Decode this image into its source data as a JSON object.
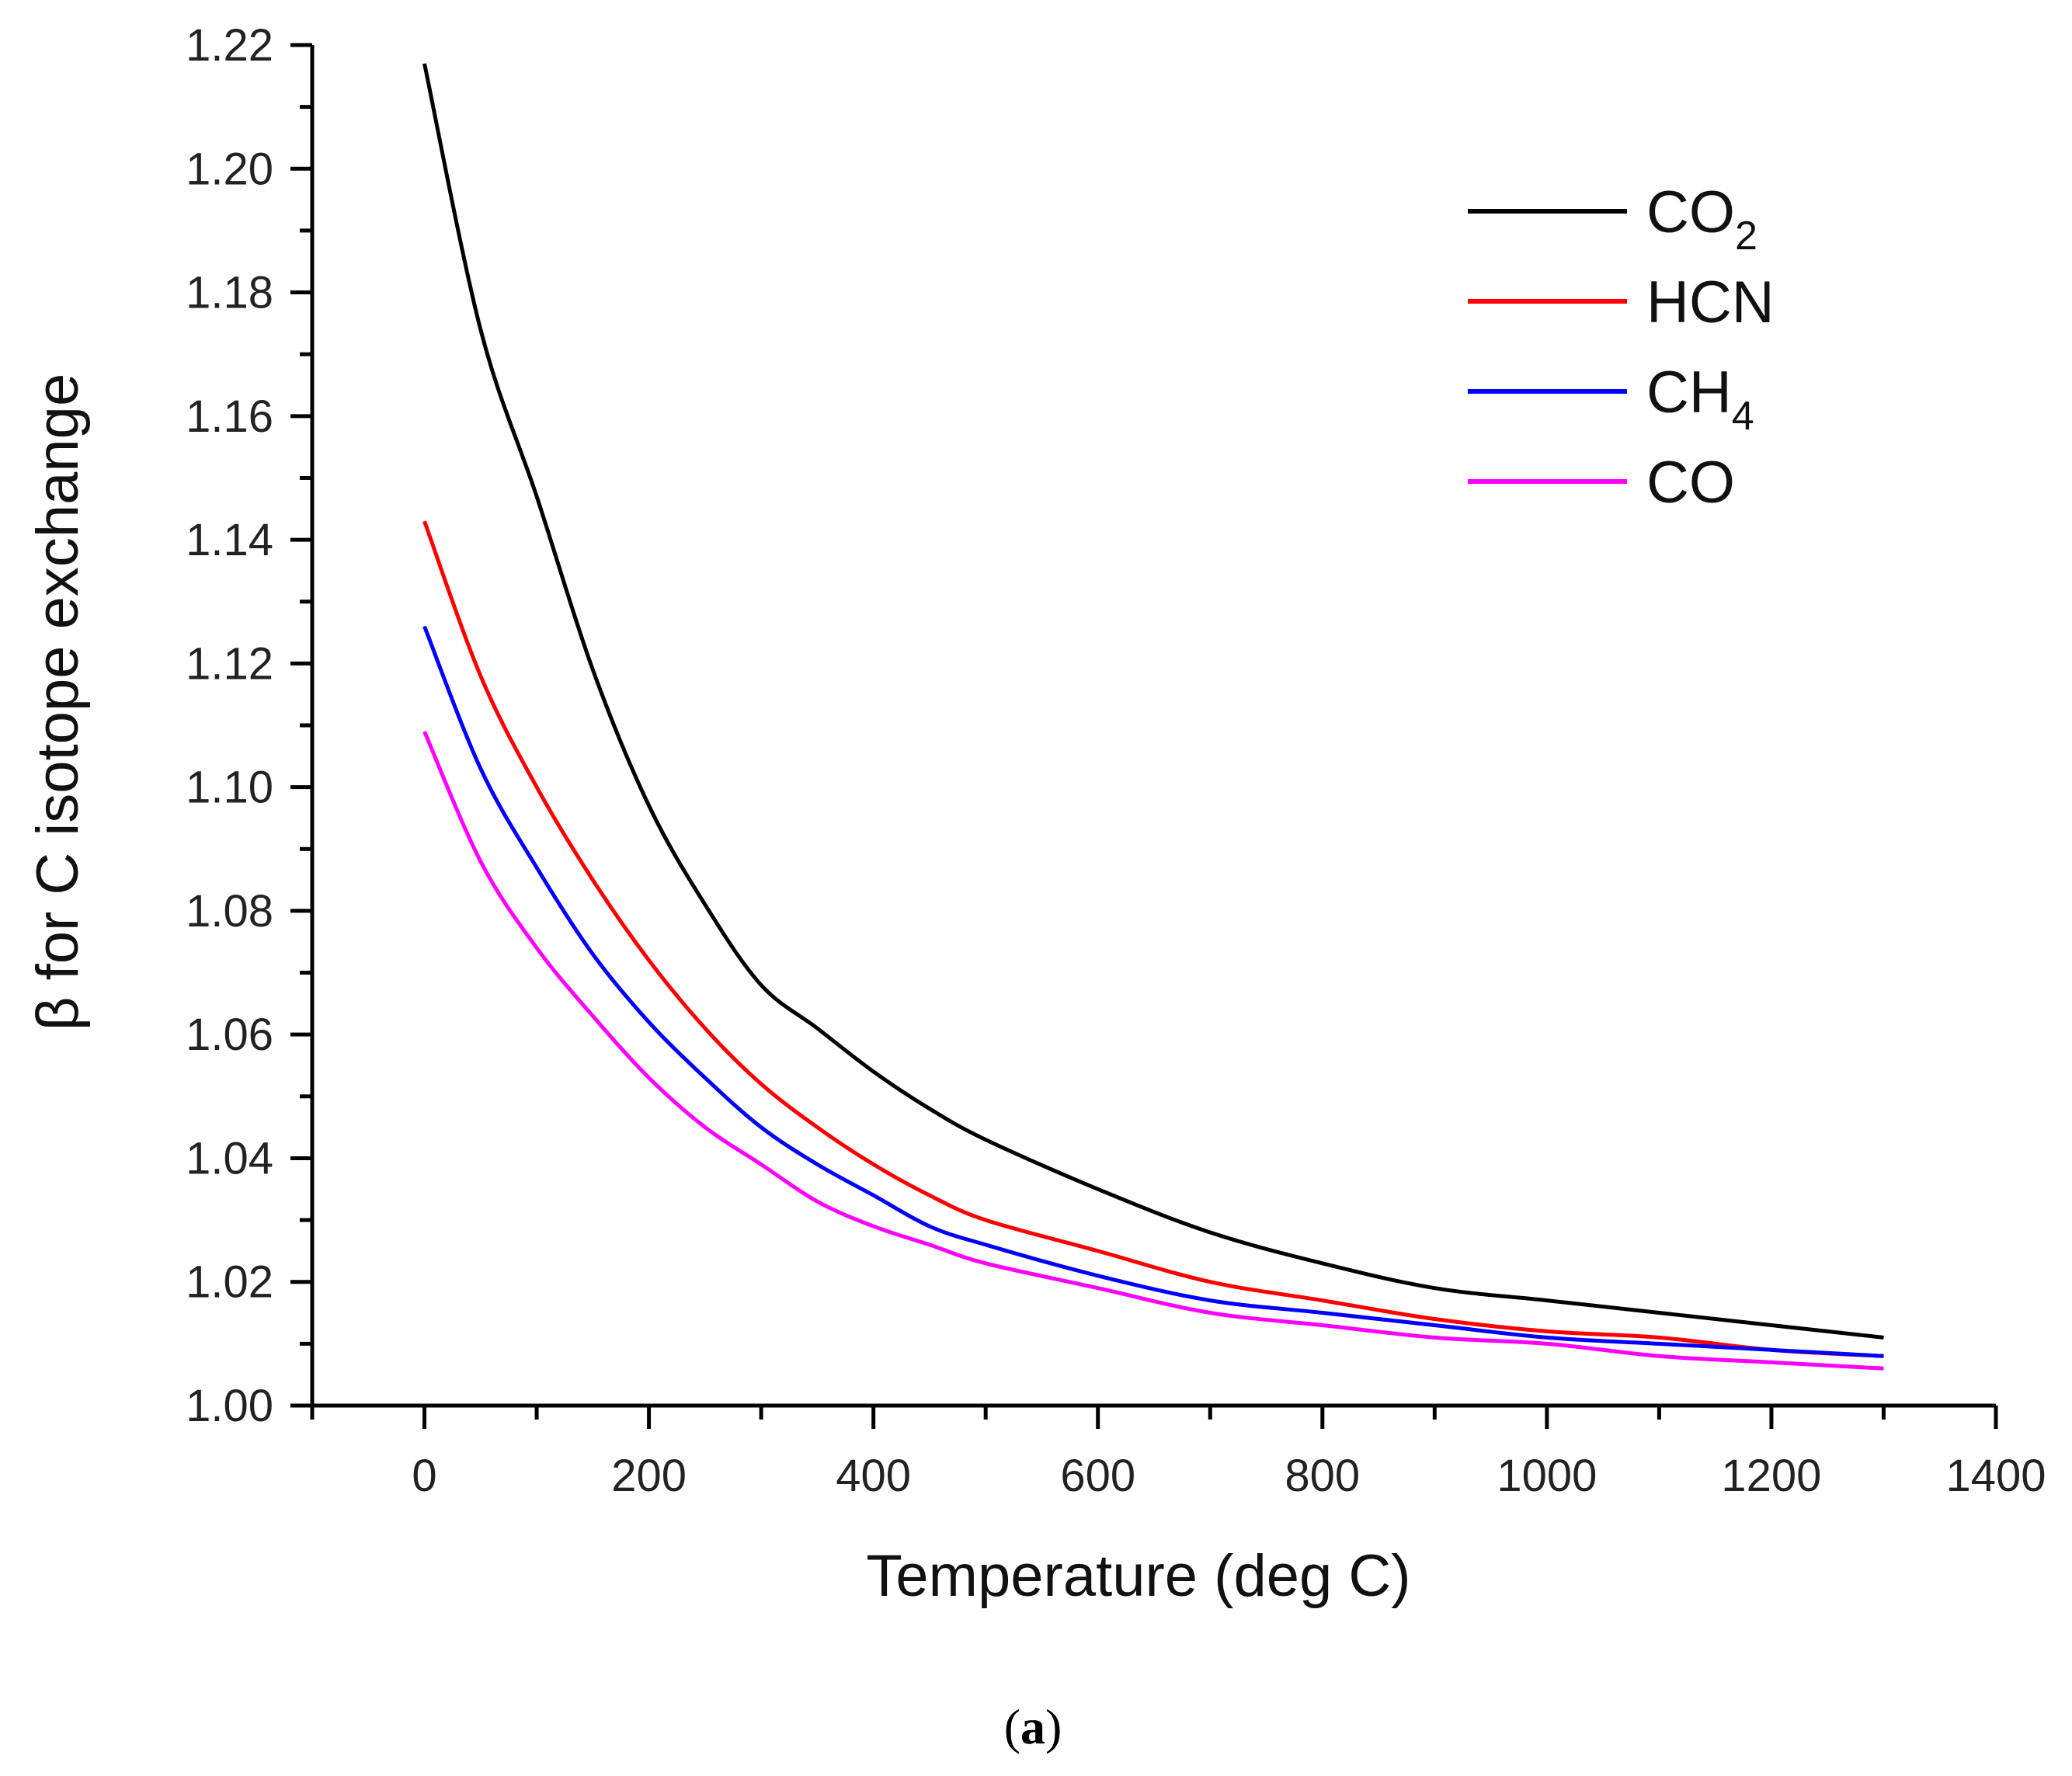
{
  "chart_data": {
    "type": "line",
    "title": "",
    "xlabel": "Temperature (deg C)",
    "ylabel": "β for C isotope exchange",
    "xlim": [
      -100,
      1400
    ],
    "ylim": [
      1.0,
      1.22
    ],
    "x_ticks": [
      "0",
      "200",
      "400",
      "600",
      "800",
      "1000",
      "1200",
      "1400"
    ],
    "y_ticks": [
      "1.00",
      "1.02",
      "1.04",
      "1.06",
      "1.08",
      "1.10",
      "1.12",
      "1.14",
      "1.16",
      "1.18",
      "1.20",
      "1.22"
    ],
    "x": [
      0,
      50,
      100,
      150,
      200,
      250,
      300,
      350,
      400,
      450,
      500,
      600,
      700,
      800,
      900,
      1000,
      1100,
      1200,
      1300
    ],
    "series": [
      {
        "name": "CO",
        "sub": "2",
        "color": "#000000",
        "values": [
          1.217,
          1.174,
          1.147,
          1.119,
          1.097,
          1.081,
          1.068,
          1.061,
          1.054,
          1.048,
          1.043,
          1.035,
          1.028,
          1.023,
          1.019,
          1.017,
          1.015,
          1.013,
          1.011
        ]
      },
      {
        "name": "HCN",
        "sub": "",
        "color": "#ff0000",
        "values": [
          1.143,
          1.118,
          1.1,
          1.085,
          1.072,
          1.061,
          1.052,
          1.045,
          1.039,
          1.034,
          1.03,
          1.025,
          1.02,
          1.017,
          1.014,
          1.012,
          1.011,
          1.009,
          1.008
        ]
      },
      {
        "name": "CH",
        "sub": "4",
        "color": "#0000ff",
        "values": [
          1.126,
          1.103,
          1.087,
          1.073,
          1.062,
          1.053,
          1.045,
          1.039,
          1.034,
          1.029,
          1.026,
          1.021,
          1.017,
          1.015,
          1.013,
          1.011,
          1.01,
          1.009,
          1.008
        ]
      },
      {
        "name": "CO",
        "sub": "",
        "color": "#ff00ff",
        "values": [
          1.109,
          1.088,
          1.074,
          1.063,
          1.053,
          1.045,
          1.039,
          1.033,
          1.029,
          1.026,
          1.023,
          1.019,
          1.015,
          1.013,
          1.011,
          1.01,
          1.008,
          1.007,
          1.006
        ]
      }
    ],
    "legend_position": "top-right",
    "caption": "(a)"
  }
}
